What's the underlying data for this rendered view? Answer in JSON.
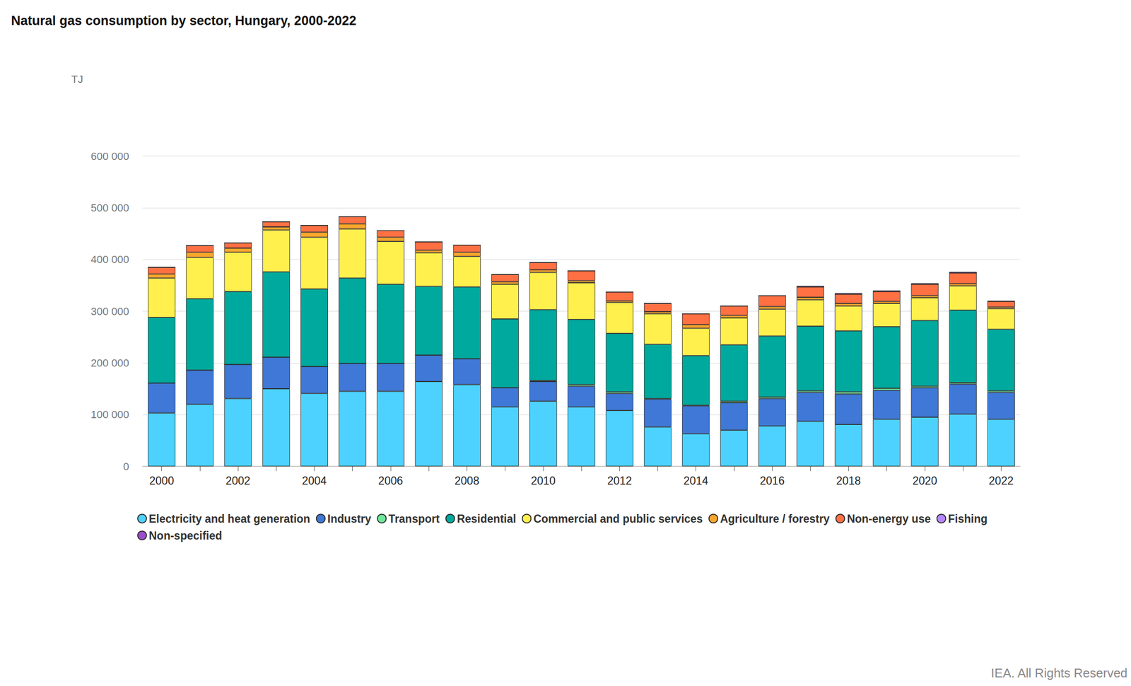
{
  "chart_data": {
    "type": "bar",
    "stacked": true,
    "title": "Natural gas consumption by sector, Hungary, 2000-2022",
    "ylabel": "TJ",
    "annotations": [
      "IEA. All Rights Reserved"
    ],
    "categories": [
      "2000",
      null,
      "2002",
      null,
      "2004",
      null,
      "2006",
      null,
      "2008",
      null,
      "2010",
      null,
      "2012",
      null,
      "2014",
      null,
      "2016",
      null,
      "2018",
      null,
      "2020",
      null,
      "2022"
    ],
    "ylim": [
      0,
      600000
    ],
    "yticks": [
      {
        "value": 0,
        "label": "0"
      },
      {
        "value": 100000,
        "label": "100 000"
      },
      {
        "value": 200000,
        "label": "200 000"
      },
      {
        "value": 300000,
        "label": "300 000"
      },
      {
        "value": 400000,
        "label": "400 000"
      },
      {
        "value": 500000,
        "label": "500 000"
      },
      {
        "value": 600000,
        "label": "600 000"
      }
    ],
    "grid": true,
    "legend": "bottom",
    "series": [
      {
        "name": "Electricity and heat generation",
        "color": "#4dd2ff",
        "values": [
          103000,
          120000,
          131000,
          150000,
          141000,
          145000,
          145000,
          164000,
          158000,
          115000,
          126000,
          115000,
          108000,
          76000,
          63000,
          70000,
          78000,
          87000,
          81000,
          91000,
          95000,
          101000,
          91000
        ]
      },
      {
        "name": "Industry",
        "color": "#3f78d6",
        "values": [
          58000,
          66000,
          66000,
          61000,
          52000,
          54000,
          54000,
          51000,
          50000,
          37000,
          38000,
          40000,
          33000,
          54000,
          54000,
          53000,
          53000,
          56000,
          59000,
          56000,
          57000,
          58000,
          52000
        ]
      },
      {
        "name": "Transport",
        "color": "#6ee79a",
        "values": [
          0,
          0,
          0,
          0,
          0,
          0,
          0,
          0,
          0,
          0,
          2000,
          3000,
          3000,
          1000,
          1000,
          3000,
          3000,
          3000,
          4000,
          4000,
          3000,
          3000,
          3000
        ]
      },
      {
        "name": "Residential",
        "color": "#00a99d",
        "values": [
          127000,
          138000,
          141000,
          165000,
          150000,
          165000,
          153000,
          133000,
          139000,
          133000,
          137000,
          126000,
          113000,
          105000,
          96000,
          109000,
          118000,
          125000,
          118000,
          119000,
          127000,
          140000,
          119000
        ]
      },
      {
        "name": "Commercial and public services",
        "color": "#fff04d",
        "values": [
          76000,
          80000,
          76000,
          81000,
          100000,
          95000,
          83000,
          65000,
          59000,
          67000,
          72000,
          71000,
          60000,
          59000,
          53000,
          52000,
          52000,
          51000,
          48000,
          45000,
          44000,
          47000,
          40000
        ]
      },
      {
        "name": "Agriculture / forestry",
        "color": "#f9a62b",
        "values": [
          8000,
          10000,
          8000,
          6000,
          10000,
          10000,
          8000,
          5000,
          8000,
          5000,
          5000,
          4000,
          3000,
          4000,
          7000,
          5000,
          5000,
          5000,
          5000,
          4000,
          4000,
          4000,
          3000
        ]
      },
      {
        "name": "Non-energy use",
        "color": "#ff7043",
        "values": [
          13000,
          13000,
          10000,
          10000,
          13000,
          14000,
          13000,
          16000,
          14000,
          14000,
          14000,
          19000,
          17000,
          16000,
          21000,
          18000,
          21000,
          20000,
          18000,
          19000,
          22000,
          21000,
          11000
        ]
      },
      {
        "name": "Fishing",
        "color": "#b388ff",
        "values": [
          0,
          0,
          0,
          0,
          0,
          0,
          0,
          0,
          0,
          0,
          0,
          0,
          0,
          0,
          0,
          0,
          0,
          0,
          0,
          0,
          0,
          0,
          0
        ]
      },
      {
        "name": "Non-specified",
        "color": "#9c4dcc",
        "values": [
          0,
          0,
          0,
          0,
          0,
          0,
          0,
          0,
          0,
          0,
          0,
          0,
          0,
          0,
          0,
          0,
          0,
          2000,
          2000,
          2000,
          2000,
          2000,
          1000
        ]
      }
    ]
  }
}
